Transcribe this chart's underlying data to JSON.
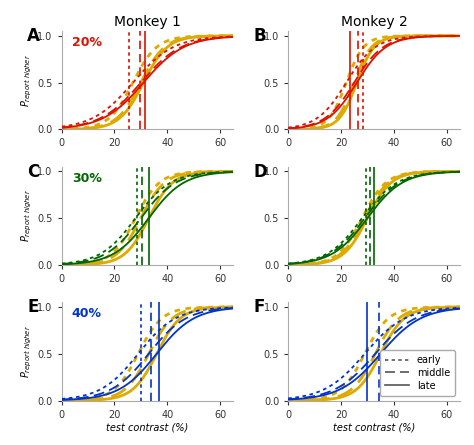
{
  "title_left": "Monkey 1",
  "title_right": "Monkey 2",
  "panels": [
    "A",
    "B",
    "C",
    "D",
    "E",
    "F"
  ],
  "percent_labels": [
    "20%",
    "30%",
    "40%"
  ],
  "percent_colors": [
    "#dd1100",
    "#006600",
    "#0033cc"
  ],
  "xlabel": "test contrast (%)",
  "ylabel": "P_{report higher}",
  "xlim": [
    0,
    65
  ],
  "ylim": [
    0,
    1.05
  ],
  "xticks": [
    0,
    20,
    40,
    60
  ],
  "yticks": [
    0,
    0.5,
    1
  ],
  "background": "#ffffff",
  "curve_params": {
    "A": {
      "color_group": "red_yellow",
      "curves": [
        {
          "slope": 0.13,
          "mid": 27,
          "style": "dotted",
          "yellow": false
        },
        {
          "slope": 0.13,
          "mid": 30,
          "style": "dashed",
          "yellow": false
        },
        {
          "slope": 0.13,
          "mid": 31,
          "style": "solid",
          "yellow": false
        },
        {
          "slope": 0.22,
          "mid": 27,
          "style": "dotted",
          "yellow": true
        },
        {
          "slope": 0.22,
          "mid": 30,
          "style": "dashed",
          "yellow": true
        },
        {
          "slope": 0.22,
          "mid": 31,
          "style": "solid",
          "yellow": true
        }
      ],
      "vlines": [
        25.5,
        29.5,
        31.5
      ],
      "vline_styles": [
        "dotted",
        "dashed",
        "solid"
      ]
    },
    "B": {
      "color_group": "red_yellow",
      "curves": [
        {
          "slope": 0.18,
          "mid": 22,
          "style": "dotted",
          "yellow": false
        },
        {
          "slope": 0.18,
          "mid": 25,
          "style": "dashed",
          "yellow": false
        },
        {
          "slope": 0.18,
          "mid": 26,
          "style": "solid",
          "yellow": false
        },
        {
          "slope": 0.3,
          "mid": 22,
          "style": "dotted",
          "yellow": true
        },
        {
          "slope": 0.3,
          "mid": 25,
          "style": "dashed",
          "yellow": true
        },
        {
          "slope": 0.3,
          "mid": 26,
          "style": "solid",
          "yellow": true
        }
      ],
      "vlines": [
        23.5,
        26.5,
        28.5
      ],
      "vline_styles": [
        "solid",
        "dashed",
        "dotted"
      ]
    },
    "C": {
      "color_group": "green_yellow",
      "curves": [
        {
          "slope": 0.15,
          "mid": 28,
          "style": "dotted",
          "yellow": false
        },
        {
          "slope": 0.15,
          "mid": 30,
          "style": "dashed",
          "yellow": false
        },
        {
          "slope": 0.15,
          "mid": 33,
          "style": "solid",
          "yellow": false
        },
        {
          "slope": 0.22,
          "mid": 28,
          "style": "dotted",
          "yellow": true
        },
        {
          "slope": 0.22,
          "mid": 30,
          "style": "dashed",
          "yellow": true
        },
        {
          "slope": 0.22,
          "mid": 33,
          "style": "solid",
          "yellow": true
        }
      ],
      "vlines": [
        28.5,
        30.5,
        33.0
      ],
      "vline_styles": [
        "dotted",
        "dashed",
        "solid"
      ]
    },
    "D": {
      "color_group": "green_yellow",
      "curves": [
        {
          "slope": 0.15,
          "mid": 28,
          "style": "dotted",
          "yellow": false
        },
        {
          "slope": 0.15,
          "mid": 29,
          "style": "dashed",
          "yellow": false
        },
        {
          "slope": 0.15,
          "mid": 30,
          "style": "solid",
          "yellow": false
        },
        {
          "slope": 0.22,
          "mid": 28,
          "style": "dotted",
          "yellow": true
        },
        {
          "slope": 0.22,
          "mid": 29,
          "style": "dashed",
          "yellow": true
        },
        {
          "slope": 0.22,
          "mid": 30,
          "style": "solid",
          "yellow": true
        }
      ],
      "vlines": [
        29.5,
        31.0,
        32.5
      ],
      "vline_styles": [
        "dotted",
        "dashed",
        "solid"
      ]
    },
    "E": {
      "color_group": "blue_yellow",
      "curves": [
        {
          "slope": 0.14,
          "mid": 29,
          "style": "dotted",
          "yellow": false
        },
        {
          "slope": 0.14,
          "mid": 33,
          "style": "dashed",
          "yellow": false
        },
        {
          "slope": 0.14,
          "mid": 36,
          "style": "solid",
          "yellow": false
        },
        {
          "slope": 0.22,
          "mid": 29,
          "style": "dotted",
          "yellow": true
        },
        {
          "slope": 0.22,
          "mid": 33,
          "style": "dashed",
          "yellow": true
        },
        {
          "slope": 0.22,
          "mid": 36,
          "style": "solid",
          "yellow": true
        }
      ],
      "vlines": [
        30.0,
        34.0,
        37.0
      ],
      "vline_styles": [
        "dotted",
        "dashed",
        "solid"
      ]
    },
    "F": {
      "color_group": "blue_yellow",
      "curves": [
        {
          "slope": 0.13,
          "mid": 29,
          "style": "dotted",
          "yellow": false
        },
        {
          "slope": 0.13,
          "mid": 33,
          "style": "dashed",
          "yellow": false
        },
        {
          "slope": 0.13,
          "mid": 35,
          "style": "solid",
          "yellow": false
        },
        {
          "slope": 0.22,
          "mid": 29,
          "style": "dotted",
          "yellow": true
        },
        {
          "slope": 0.22,
          "mid": 33,
          "style": "dashed",
          "yellow": true
        },
        {
          "slope": 0.22,
          "mid": 35,
          "style": "solid",
          "yellow": true
        }
      ],
      "vlines": [
        30.0,
        34.5
      ],
      "vline_styles": [
        "solid",
        "dashed"
      ]
    }
  },
  "colors": {
    "red": "#dd1100",
    "green": "#006600",
    "blue": "#0033cc",
    "yellow": "#ddaa00",
    "vline_A": "#dd1100",
    "vline_B": "#dd1100",
    "vline_C": "#006600",
    "vline_D": "#006600",
    "vline_E": "#0033cc",
    "vline_F": "#0033cc"
  }
}
